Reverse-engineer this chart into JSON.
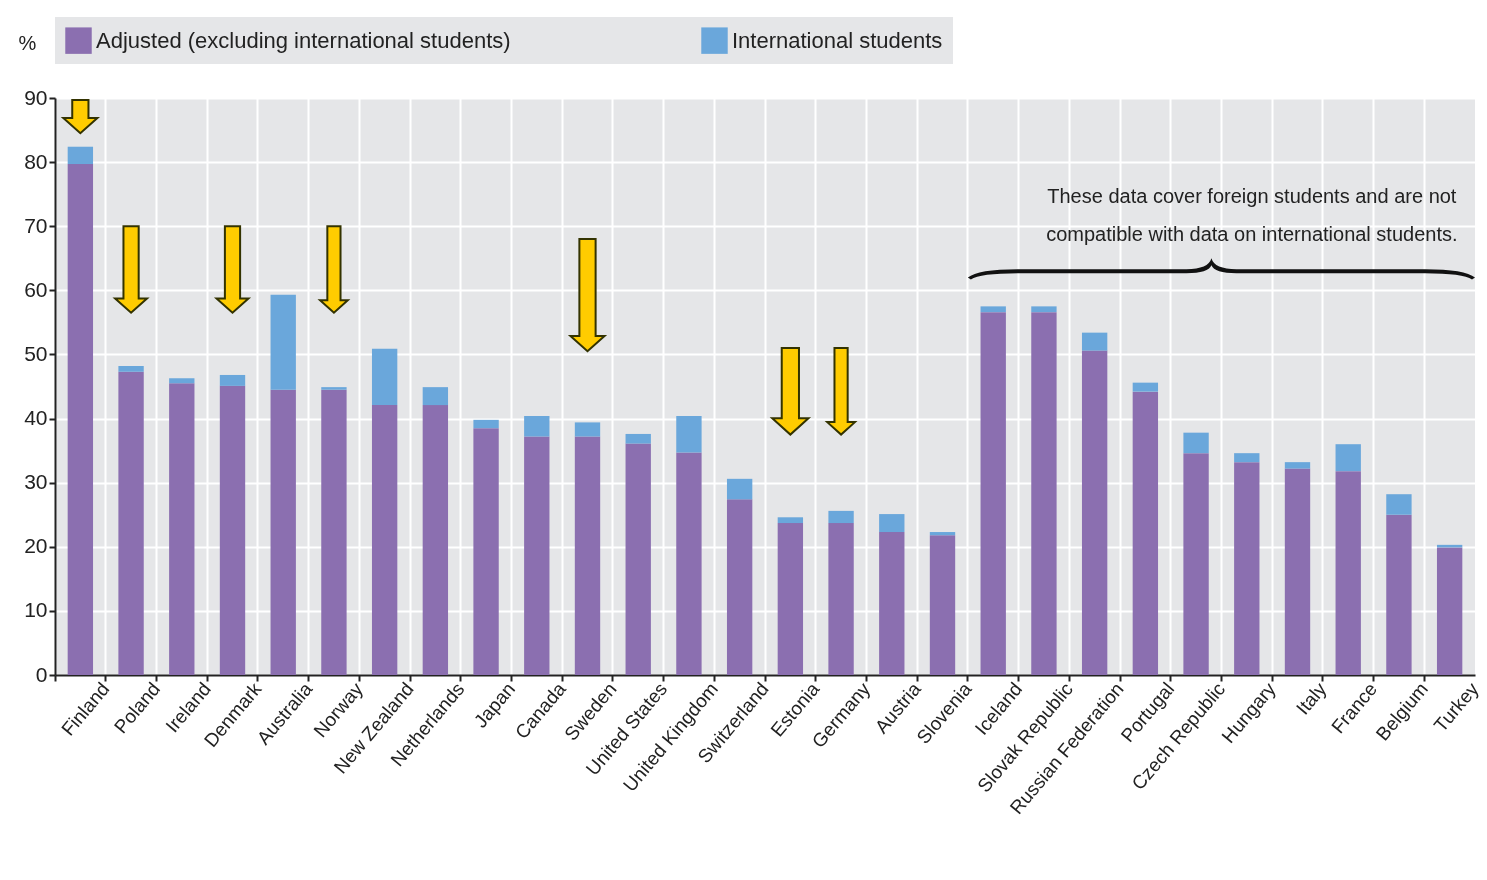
{
  "chart_data": {
    "type": "bar",
    "stacked": true,
    "ylabel": "%",
    "categories": [
      "Finland",
      "Poland",
      "Ireland",
      "Denmark",
      "Australia",
      "Norway",
      "New Zealand",
      "Netherlands",
      "Japan",
      "Canada",
      "Sweden",
      "United States",
      "United Kingdom",
      "Switzerland",
      "Estonia",
      "Germany",
      "Austria",
      "Slovenia",
      "Iceland",
      "Slovak Republic",
      "Russian Federation",
      "Portugal",
      "Czech Republic",
      "Hungary",
      "Italy",
      "France",
      "Belgium",
      "Turkey"
    ],
    "series": [
      {
        "name": "Adjusted (excluding international students)",
        "color": "#8b6fb0",
        "values": [
          79.7,
          47.3,
          45.5,
          45.1,
          44.5,
          44.5,
          42.1,
          42.1,
          38.5,
          37.2,
          37.2,
          36.1,
          34.7,
          27.4,
          23.7,
          23.7,
          22.3,
          21.8,
          56.6,
          56.6,
          50.6,
          44.2,
          34.6,
          33.2,
          32.2,
          31.8,
          25.0,
          19.9
        ]
      },
      {
        "name": "International students",
        "color": "#6aa7db",
        "values": [
          2.7,
          0.9,
          0.8,
          1.7,
          14.8,
          0.4,
          8.8,
          2.8,
          1.3,
          3.2,
          2.2,
          1.5,
          5.7,
          3.2,
          0.9,
          1.9,
          2.8,
          0.5,
          0.9,
          0.9,
          2.8,
          1.4,
          3.2,
          1.4,
          1.0,
          4.2,
          3.2,
          0.4
        ]
      }
    ],
    "ylim": [
      0,
      90
    ],
    "yticks": [
      0,
      10,
      20,
      30,
      40,
      50,
      60,
      70,
      80,
      90
    ],
    "grid": true,
    "legend": "top",
    "annotations": [
      "These data cover foreign students and are not compatible with data on international students."
    ]
  }
}
